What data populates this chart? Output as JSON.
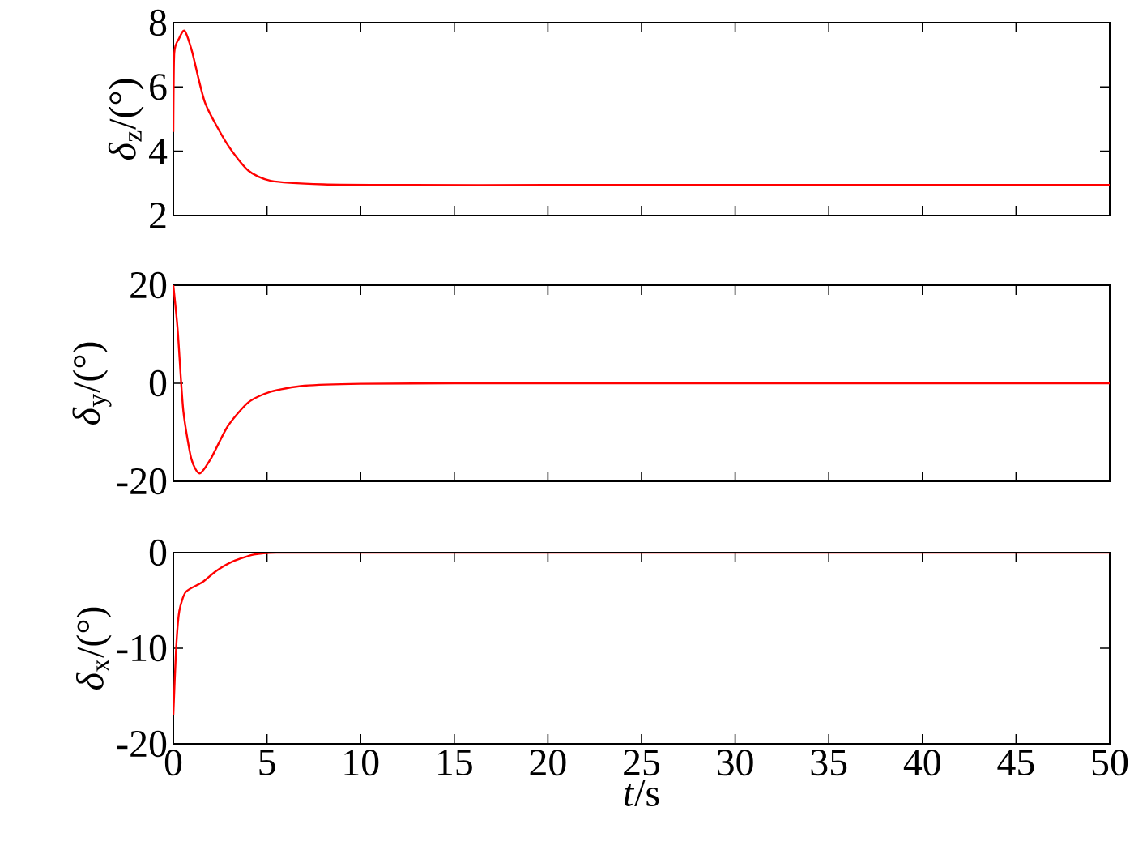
{
  "chart_data": [
    {
      "type": "line",
      "ylabel": "*δ*$_{z}$/(°)",
      "xlim": [
        0,
        50
      ],
      "xticks": [
        0,
        5,
        10,
        15,
        20,
        25,
        30,
        35,
        40,
        45,
        50
      ],
      "ylim": [
        2,
        8
      ],
      "yticks": [
        2,
        4,
        6,
        8
      ],
      "tick_labels": "y",
      "line_style": "solid",
      "x": [
        0,
        0.05,
        0.3,
        0.6,
        1.0,
        1.7,
        2.9,
        4.0,
        5.2,
        8,
        12,
        20,
        30,
        40,
        50
      ],
      "series": [
        {
          "color": "#ff0000",
          "values": [
            4.6,
            7.05,
            7.5,
            7.75,
            7.1,
            5.5,
            4.2,
            3.4,
            3.08,
            2.97,
            2.95,
            2.95,
            2.95,
            2.95,
            2.95
          ]
        }
      ]
    },
    {
      "type": "line",
      "ylabel": "*δ*$_{y}$/(°)",
      "xlim": [
        0,
        50
      ],
      "xticks": [
        0,
        5,
        10,
        15,
        20,
        25,
        30,
        35,
        40,
        45,
        50
      ],
      "ylim": [
        -20,
        20
      ],
      "yticks": [
        -20,
        0,
        20
      ],
      "tick_labels": "y",
      "line_style": "solid",
      "x": [
        0,
        0.23,
        0.53,
        0.96,
        1.4,
        2.0,
        2.9,
        4.0,
        5.2,
        7,
        10,
        15,
        30,
        50
      ],
      "series": [
        {
          "color": "#ff0000",
          "values": [
            20,
            11,
            -5.5,
            -15.4,
            -18.4,
            -15.4,
            -8.8,
            -3.9,
            -1.7,
            -0.5,
            -0.1,
            0,
            0,
            0
          ]
        }
      ]
    },
    {
      "type": "line",
      "xlabel": "*t*/s",
      "ylabel": "*δ*$_{x}$/(°)",
      "xlim": [
        0,
        50
      ],
      "xticks": [
        0,
        5,
        10,
        15,
        20,
        25,
        30,
        35,
        40,
        45,
        50
      ],
      "ylim": [
        -20,
        0
      ],
      "yticks": [
        -20,
        -10,
        0
      ],
      "line_style": "solid",
      "x": [
        0,
        0.15,
        0.32,
        0.67,
        1.55,
        2.3,
        3.2,
        4.3,
        5.5,
        10,
        20,
        30,
        40,
        50
      ],
      "series": [
        {
          "color": "#ff0000",
          "values": [
            -17,
            -10,
            -6.1,
            -4.1,
            -3.1,
            -1.9,
            -0.9,
            -0.2,
            0,
            0,
            0,
            0,
            0,
            0
          ]
        }
      ]
    }
  ]
}
